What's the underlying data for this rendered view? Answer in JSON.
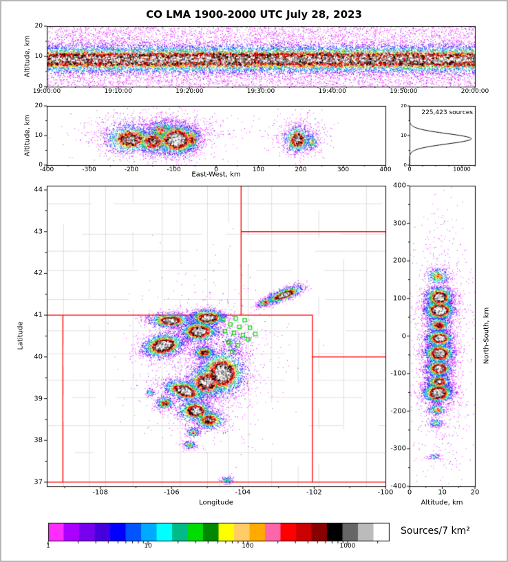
{
  "title": "CO LMA 1900-2000 UTC July 28, 2023",
  "labels": {
    "alt_axis_top": "Altitude, km",
    "alt_axis_mid": "Altitude, km",
    "ew_axis": "East-West, km",
    "lat_axis": "Latitude",
    "lon_axis": "Longitude",
    "ns_axis": "North-South, km",
    "alt_axis_bottom": "Altitude, km",
    "sources_count": "225,423 sources",
    "colorbar_label": "Sources/7 km²"
  },
  "chart_data": {
    "type": "heatmap",
    "description": "Lightning Mapping Array VHF source density, xlma-style multi-panel display for Colorado LMA, 1900-2000 UTC July 28 2023",
    "total_sources": 225423,
    "colorbar": {
      "title": "Sources/7 km²",
      "scale": "log",
      "tick_values": [
        1,
        10,
        100,
        1000
      ],
      "max_value": 2600,
      "colors": [
        "#ff2bff",
        "#aa00ff",
        "#7700ee",
        "#4600dd",
        "#0000ff",
        "#0055ff",
        "#00aaff",
        "#00ffff",
        "#00bb88",
        "#00dd00",
        "#008800",
        "#ffff00",
        "#ffcc66",
        "#ffaa00",
        "#ff66aa",
        "#ff0000",
        "#cc0000",
        "#880000",
        "#000000",
        "#666666",
        "#bbbbbb",
        "#ffffff"
      ]
    },
    "map_colors": {
      "state_border": "#ff0000",
      "county_line": "#c8c8c8",
      "station": "#00d800",
      "frame": "#000000"
    },
    "panels": {
      "time_height": {
        "x_ticks": [
          "19:00:00",
          "19:10:00",
          "19:20:00",
          "19:30:00",
          "19:40:00",
          "19:50:00",
          "20:00:00"
        ],
        "x_range_seconds": [
          0,
          3600
        ],
        "y_label": "Altitude, km",
        "y_range_km": [
          0,
          20
        ],
        "y_ticks": [
          0,
          10,
          20
        ],
        "y_minor": [
          5,
          15
        ],
        "band_center_km": 9.2,
        "band_sigma_km": 2.4,
        "n_points": 26000,
        "uniform_fraction": 0.3
      },
      "ew_height": {
        "x_label": "East-West, km",
        "x_range_km": [
          -400,
          400
        ],
        "x_ticks": [
          -400,
          -300,
          -200,
          -100,
          0,
          100,
          200,
          300,
          400
        ],
        "y_range_km": [
          0,
          20
        ],
        "y_ticks": [
          0,
          10,
          20
        ],
        "y_minor": [
          5,
          15
        ],
        "clusters": [
          {
            "ew": -205,
            "alt": 9.0,
            "sx": 30,
            "sy": 2.6,
            "peak": 0.85,
            "n": 1300
          },
          {
            "ew": -150,
            "alt": 8.2,
            "sx": 22,
            "sy": 2.4,
            "peak": 0.8,
            "n": 1000
          },
          {
            "ew": -95,
            "alt": 8.8,
            "sx": 26,
            "sy": 2.8,
            "peak": 1.0,
            "n": 2400
          },
          {
            "ew": -130,
            "alt": 12.0,
            "sx": 18,
            "sy": 2.0,
            "peak": 0.6,
            "n": 500
          },
          {
            "ew": -60,
            "alt": 9.0,
            "sx": 12,
            "sy": 2.2,
            "peak": 0.7,
            "n": 500
          },
          {
            "ew": 190,
            "alt": 8.8,
            "sx": 16,
            "sy": 2.4,
            "peak": 0.85,
            "n": 900
          },
          {
            "ew": 225,
            "alt": 8.0,
            "sx": 8,
            "sy": 1.6,
            "peak": 0.5,
            "n": 220
          },
          {
            "ew": -140,
            "alt": 10.5,
            "sx": 85,
            "sy": 4.0,
            "peak": 0.1,
            "n": 1200
          },
          {
            "ew": 195,
            "alt": 10.0,
            "sx": 40,
            "sy": 4.0,
            "peak": 0.08,
            "n": 300
          }
        ]
      },
      "alt_histogram": {
        "x_ticks": [
          0,
          10000
        ],
        "x_range": [
          0,
          12500
        ],
        "x_minor": [
          2500,
          5000,
          7500,
          12500
        ],
        "y_range_km": [
          0,
          20
        ],
        "y_ticks": [
          0,
          10,
          20
        ],
        "y_minor": [
          5,
          15
        ],
        "peak_alt_km": 8.9,
        "sigma_km": 1.75,
        "peak_count": 11800,
        "annotation": "225,423 sources"
      },
      "map": {
        "x_label": "Longitude",
        "y_label": "Latitude",
        "lon_range": [
          -109.5,
          -100.0
        ],
        "lat_range": [
          36.9,
          44.1
        ],
        "lon_ticks": [
          -108,
          -106,
          -104,
          -102,
          -100
        ],
        "lon_minor": [
          -109,
          -107,
          -105,
          -103,
          -101
        ],
        "lat_ticks": [
          37,
          38,
          39,
          40,
          41,
          42,
          43,
          44
        ],
        "state_borders": [
          [
            [
              -109.05,
              41
            ],
            [
              -102.05,
              41
            ],
            [
              -102.05,
              37
            ],
            [
              -109.05,
              37
            ],
            [
              -109.05,
              41
            ]
          ],
          [
            [
              -109.5,
              41
            ],
            [
              -109.05,
              41
            ]
          ],
          [
            [
              -109.5,
              37
            ],
            [
              -109.05,
              37
            ]
          ],
          [
            [
              -104.05,
              44.1
            ],
            [
              -104.05,
              41
            ]
          ],
          [
            [
              -104.05,
              43
            ],
            [
              -100.0,
              43
            ]
          ],
          [
            [
              -102.05,
              40
            ],
            [
              -100.0,
              40
            ]
          ],
          [
            [
              -102.05,
              37
            ],
            [
              -100.0,
              37
            ]
          ]
        ],
        "stations": [
          [
            -104.55,
            40.9
          ],
          [
            -104.2,
            40.92
          ],
          [
            -103.95,
            40.88
          ],
          [
            -104.35,
            40.78
          ],
          [
            -104.1,
            40.72
          ],
          [
            -103.8,
            40.7
          ],
          [
            -104.5,
            40.62
          ],
          [
            -104.25,
            40.58
          ],
          [
            -104.0,
            40.52
          ],
          [
            -103.85,
            40.42
          ],
          [
            -104.4,
            40.35
          ],
          [
            -104.15,
            40.28
          ],
          [
            -104.3,
            40.12
          ],
          [
            -103.65,
            40.55
          ]
        ],
        "clusters": [
          {
            "lon": -102.85,
            "lat": 41.5,
            "sx": 0.28,
            "sy": 0.07,
            "rot": 18,
            "peak": 0.88,
            "n": 1100
          },
          {
            "lon": -103.38,
            "lat": 41.32,
            "sx": 0.13,
            "sy": 0.05,
            "rot": 18,
            "peak": 0.6,
            "n": 300
          },
          {
            "lon": -105.0,
            "lat": 40.95,
            "sx": 0.26,
            "sy": 0.1,
            "rot": 0,
            "peak": 0.92,
            "n": 1400
          },
          {
            "lon": -106.05,
            "lat": 40.88,
            "sx": 0.3,
            "sy": 0.09,
            "rot": 0,
            "peak": 0.9,
            "n": 1300
          },
          {
            "lon": -105.25,
            "lat": 40.62,
            "sx": 0.28,
            "sy": 0.13,
            "rot": 0,
            "peak": 0.95,
            "n": 1600
          },
          {
            "lon": -106.25,
            "lat": 40.28,
            "sx": 0.3,
            "sy": 0.14,
            "rot": 8,
            "peak": 1.0,
            "n": 2200
          },
          {
            "lon": -105.1,
            "lat": 40.12,
            "sx": 0.16,
            "sy": 0.08,
            "rot": 0,
            "peak": 0.75,
            "n": 600
          },
          {
            "lon": -104.3,
            "lat": 40.35,
            "sx": 0.3,
            "sy": 0.22,
            "rot": 0,
            "peak": 0.2,
            "n": 280
          },
          {
            "lon": -104.6,
            "lat": 39.62,
            "sx": 0.33,
            "sy": 0.27,
            "rot": 0,
            "peak": 1.0,
            "n": 2600
          },
          {
            "lon": -105.05,
            "lat": 39.4,
            "sx": 0.27,
            "sy": 0.2,
            "rot": 0,
            "peak": 0.9,
            "n": 1500
          },
          {
            "lon": -105.65,
            "lat": 39.2,
            "sx": 0.3,
            "sy": 0.12,
            "rot": -12,
            "peak": 0.95,
            "n": 1500
          },
          {
            "lon": -106.2,
            "lat": 38.9,
            "sx": 0.13,
            "sy": 0.08,
            "rot": 0,
            "peak": 0.7,
            "n": 450
          },
          {
            "lon": -105.35,
            "lat": 38.72,
            "sx": 0.25,
            "sy": 0.13,
            "rot": 0,
            "peak": 0.9,
            "n": 1100
          },
          {
            "lon": -104.95,
            "lat": 38.5,
            "sx": 0.22,
            "sy": 0.12,
            "rot": 0,
            "peak": 0.8,
            "n": 800
          },
          {
            "lon": -105.4,
            "lat": 38.2,
            "sx": 0.1,
            "sy": 0.06,
            "rot": 0,
            "peak": 0.55,
            "n": 220
          },
          {
            "lon": -105.5,
            "lat": 37.9,
            "sx": 0.1,
            "sy": 0.05,
            "rot": 0,
            "peak": 0.5,
            "n": 180
          },
          {
            "lon": -104.45,
            "lat": 37.05,
            "sx": 0.09,
            "sy": 0.05,
            "rot": 0,
            "peak": 0.45,
            "n": 140
          },
          {
            "lon": -106.6,
            "lat": 39.15,
            "sx": 0.07,
            "sy": 0.05,
            "rot": 0,
            "peak": 0.4,
            "n": 80
          },
          {
            "lon": -105.1,
            "lat": 39.9,
            "sx": 0.9,
            "sy": 0.9,
            "rot": 0,
            "peak": 0.07,
            "n": 1200
          }
        ]
      },
      "ns_height": {
        "x_label": "Altitude, km",
        "x_range_km": [
          0,
          20
        ],
        "x_ticks": [
          0,
          10,
          20
        ],
        "x_minor": [
          5,
          15
        ],
        "y_label": "North-South, km",
        "y_range_km": [
          -400,
          400
        ],
        "y_ticks": [
          400,
          300,
          200,
          100,
          0,
          -100,
          -200,
          -300,
          -400
        ],
        "clusters": [
          {
            "ns": 160,
            "alt": 8.5,
            "sns": 12,
            "salt": 1.8,
            "peak": 0.6,
            "n": 350
          },
          {
            "ns": 105,
            "alt": 9.0,
            "sns": 14,
            "salt": 2.2,
            "peak": 0.95,
            "n": 1300
          },
          {
            "ns": 70,
            "alt": 9.0,
            "sns": 14,
            "salt": 2.4,
            "peak": 1.0,
            "n": 1800
          },
          {
            "ns": 30,
            "alt": 8.8,
            "sns": 10,
            "salt": 2.0,
            "peak": 0.75,
            "n": 600
          },
          {
            "ns": -5,
            "alt": 9.0,
            "sns": 12,
            "salt": 2.2,
            "peak": 0.9,
            "n": 1100
          },
          {
            "ns": -45,
            "alt": 9.0,
            "sns": 14,
            "salt": 2.4,
            "peak": 0.95,
            "n": 1400
          },
          {
            "ns": -85,
            "alt": 8.8,
            "sns": 12,
            "salt": 2.2,
            "peak": 0.9,
            "n": 1100
          },
          {
            "ns": -120,
            "alt": 8.8,
            "sns": 10,
            "salt": 2.0,
            "peak": 0.8,
            "n": 700
          },
          {
            "ns": -150,
            "alt": 8.5,
            "sns": 14,
            "salt": 2.4,
            "peak": 1.0,
            "n": 1800
          },
          {
            "ns": -195,
            "alt": 8.2,
            "sns": 8,
            "salt": 1.6,
            "peak": 0.55,
            "n": 250
          },
          {
            "ns": -230,
            "alt": 8.0,
            "sns": 6,
            "salt": 1.4,
            "peak": 0.45,
            "n": 140
          },
          {
            "ns": -320,
            "alt": 7.5,
            "sns": 5,
            "salt": 1.2,
            "peak": 0.35,
            "n": 70
          },
          {
            "ns": -30,
            "alt": 9.5,
            "sns": 160,
            "salt": 4.5,
            "peak": 0.07,
            "n": 1400
          }
        ]
      }
    }
  }
}
